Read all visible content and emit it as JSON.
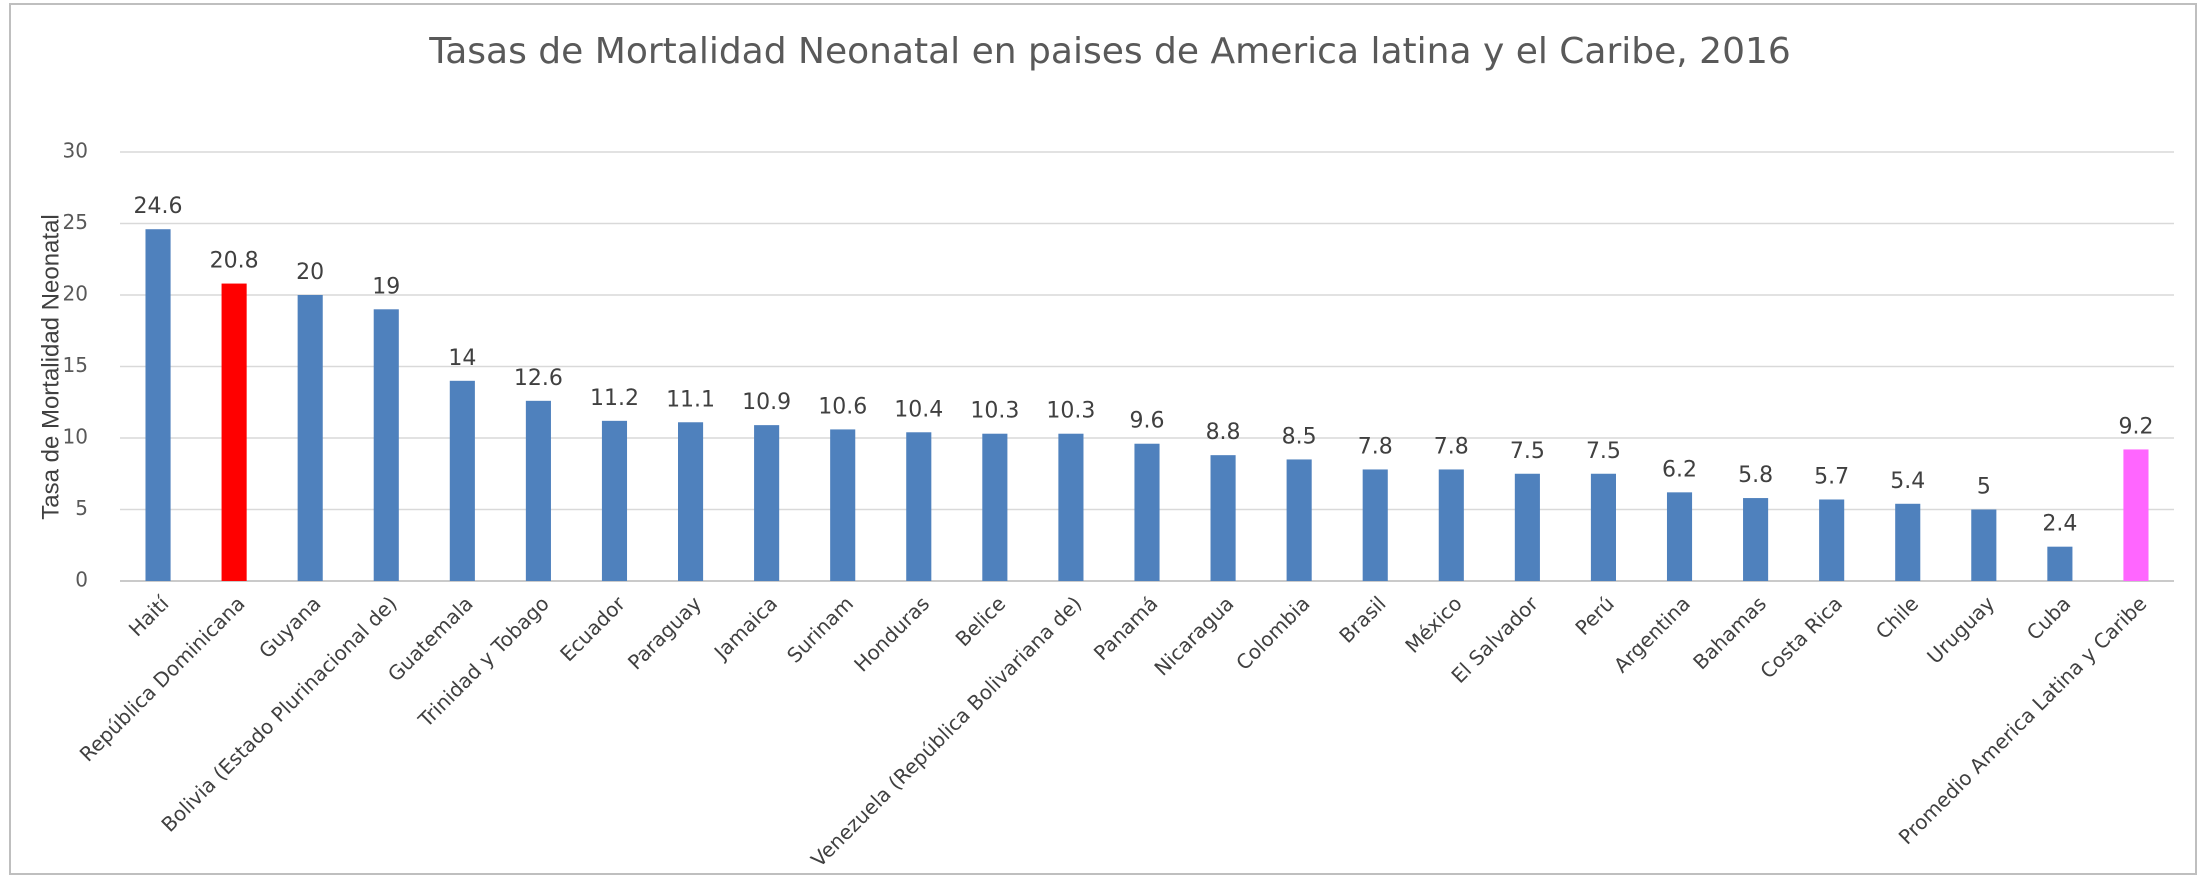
{
  "chart_data": {
    "type": "bar",
    "title": "Tasas de Mortalidad Neonatal en paises de America latina y el Caribe, 2016",
    "y_label": "Tasa de Mortalidad Neonatal",
    "categories": [
      "Haití",
      "República Dominicana",
      "Guyana",
      "Bolivia (Estado Plurinacional de)",
      "Guatemala",
      "Trinidad y Tobago",
      "Ecuador",
      "Paraguay",
      "Jamaica",
      "Surinam",
      "Honduras",
      "Belice",
      "Venezuela (República Bolivariana de)",
      "Panamá",
      "Nicaragua",
      "Colombia",
      "Brasil",
      "México",
      "El Salvador",
      "Perú",
      "Argentina",
      "Bahamas",
      "Costa Rica",
      "Chile",
      "Uruguay",
      "Cuba",
      "Promedio America Latina y Caribe"
    ],
    "values": [
      24.6,
      20.8,
      20,
      19,
      14,
      12.6,
      11.2,
      11.1,
      10.9,
      10.6,
      10.4,
      10.3,
      10.3,
      9.6,
      8.8,
      8.5,
      7.8,
      7.8,
      7.5,
      7.5,
      6.2,
      5.8,
      5.7,
      5.4,
      5,
      2.4,
      9.2
    ],
    "colors": [
      "#4f81bd",
      "#ff0000",
      "#4f81bd",
      "#4f81bd",
      "#4f81bd",
      "#4f81bd",
      "#4f81bd",
      "#4f81bd",
      "#4f81bd",
      "#4f81bd",
      "#4f81bd",
      "#4f81bd",
      "#4f81bd",
      "#4f81bd",
      "#4f81bd",
      "#4f81bd",
      "#4f81bd",
      "#4f81bd",
      "#4f81bd",
      "#4f81bd",
      "#4f81bd",
      "#4f81bd",
      "#4f81bd",
      "#4f81bd",
      "#4f81bd",
      "#4f81bd",
      "#ff66ff"
    ],
    "ylim": [
      0,
      30
    ],
    "yticks": [
      0,
      5,
      10,
      15,
      20,
      25,
      30
    ],
    "grid": true
  }
}
